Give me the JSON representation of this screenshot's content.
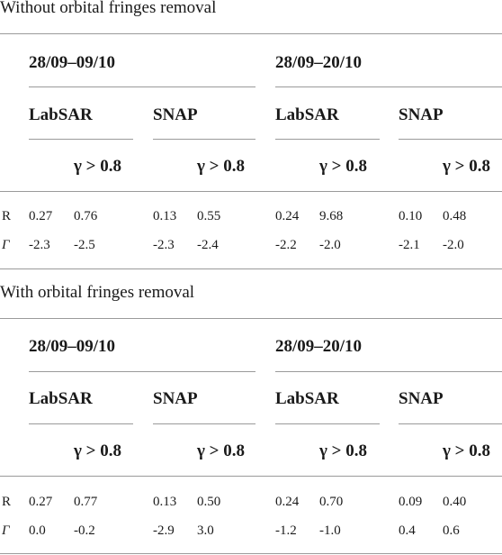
{
  "sections": [
    {
      "title": "Without orbital fringes removal",
      "periods": [
        "28/09–09/10",
        "28/09–20/10"
      ],
      "methods": [
        "LabSAR",
        "SNAP",
        "LabSAR",
        "SNAP"
      ],
      "gamma_label": "γ > 0.8",
      "rows": [
        {
          "label": "R",
          "values": [
            "0.27",
            "0.76",
            "0.13",
            "0.55",
            "0.24",
            "9.68",
            "0.10",
            "0.48"
          ]
        },
        {
          "label": "Γ",
          "values": [
            "-2.3",
            "-2.5",
            "-2.3",
            "-2.4",
            "-2.2",
            "-2.0",
            "-2.1",
            "-2.0"
          ]
        }
      ]
    },
    {
      "title": "With orbital fringes removal",
      "periods": [
        "28/09–09/10",
        "28/09–20/10"
      ],
      "methods": [
        "LabSAR",
        "SNAP",
        "LabSAR",
        "SNAP"
      ],
      "gamma_label": "γ > 0.8",
      "rows": [
        {
          "label": "R",
          "values": [
            "0.27",
            "0.77",
            "0.13",
            "0.50",
            "0.24",
            "0.70",
            "0.09",
            "0.40"
          ]
        },
        {
          "label": "Γ",
          "values": [
            "0.0",
            "-0.2",
            "-2.9",
            "3.0",
            "-1.2",
            "-1.0",
            "0.4",
            "0.6"
          ]
        }
      ]
    }
  ]
}
